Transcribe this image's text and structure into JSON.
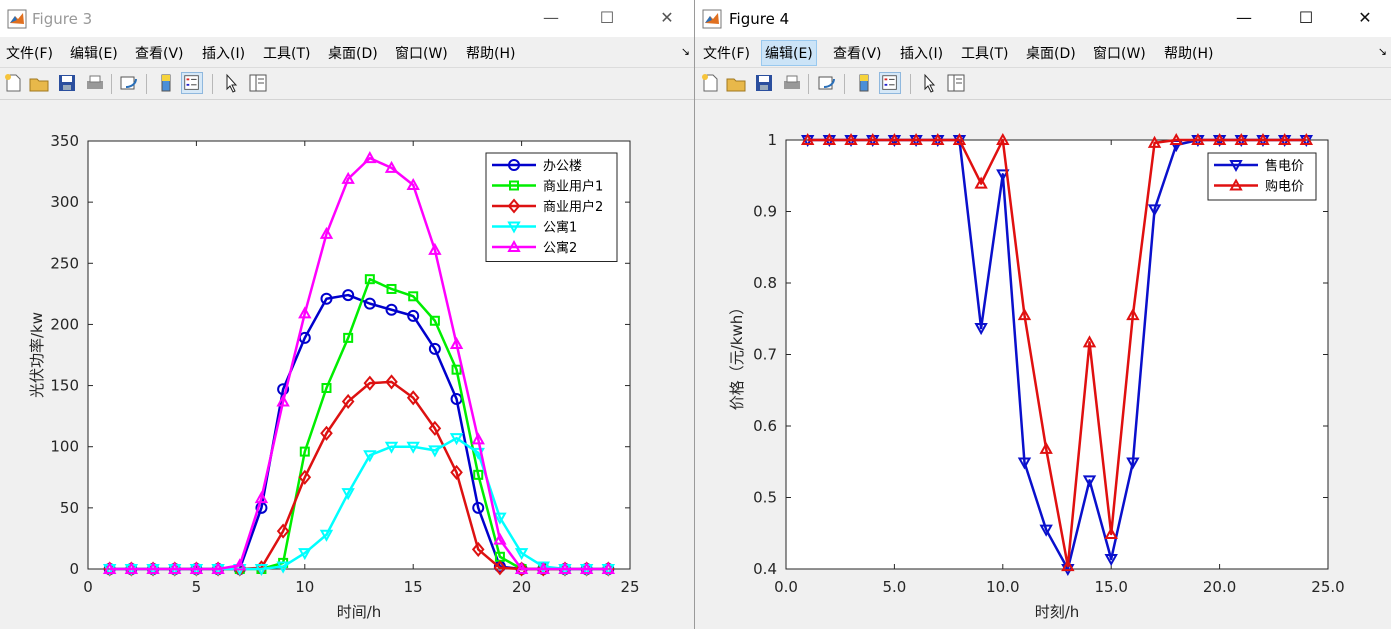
{
  "left_window": {
    "title": "Figure 3",
    "menu": [
      "文件(F)",
      "编辑(E)",
      "查看(V)",
      "插入(I)",
      "工具(T)",
      "桌面(D)",
      "窗口(W)",
      "帮助(H)"
    ],
    "toolbar_icons": [
      "new-figure-icon",
      "open-file-icon",
      "save-icon",
      "print-icon",
      "link-plot-icon",
      "colorbar-icon",
      "legend-icon",
      "edit-plot-pointer-icon",
      "property-inspector-icon"
    ]
  },
  "right_window": {
    "title": "Figure 4",
    "menu": [
      "文件(F)",
      "编辑(E)",
      "查看(V)",
      "插入(I)",
      "工具(T)",
      "桌面(D)",
      "窗口(W)",
      "帮助(H)"
    ],
    "selected_menu_index": 1
  },
  "colors": {
    "blue": "#0000cc",
    "green": "#00ee00",
    "red": "#dd1111",
    "cyan": "#00ffff",
    "magenta": "#ff00ff",
    "blue2": "#0a10cc",
    "red2": "#e01010"
  },
  "chart_data": [
    {
      "type": "line",
      "xlabel": "时间/h",
      "ylabel": "光伏功率/kw",
      "xlim": [
        0,
        25
      ],
      "ylim": [
        0,
        350
      ],
      "xticks": [
        0,
        5,
        10,
        15,
        20,
        25
      ],
      "yticks": [
        0,
        50,
        100,
        150,
        200,
        250,
        300,
        350
      ],
      "legend_position": "top-right",
      "x": [
        1,
        2,
        3,
        4,
        5,
        6,
        7,
        8,
        9,
        10,
        11,
        12,
        13,
        14,
        15,
        16,
        17,
        18,
        19,
        20,
        21,
        22,
        23,
        24
      ],
      "series": [
        {
          "name": "办公楼",
          "marker": "circle",
          "color": "#0000cc",
          "values": [
            0,
            0,
            0,
            0,
            0,
            0,
            0,
            50,
            147,
            189,
            221,
            224,
            217,
            212,
            207,
            180,
            139,
            50,
            2,
            0,
            0,
            0,
            0,
            0
          ]
        },
        {
          "name": "商业用户1",
          "marker": "square",
          "color": "#00ee00",
          "values": [
            0,
            0,
            0,
            0,
            0,
            0,
            0,
            0,
            5,
            96,
            148,
            189,
            237,
            229,
            223,
            203,
            163,
            77,
            10,
            0,
            0,
            0,
            0,
            0
          ]
        },
        {
          "name": "商业用户2",
          "marker": "diamond",
          "color": "#dd1111",
          "values": [
            0,
            0,
            0,
            0,
            0,
            0,
            0,
            1,
            31,
            75,
            111,
            137,
            152,
            153,
            140,
            115,
            79,
            16,
            1,
            0,
            0,
            0,
            0,
            0
          ]
        },
        {
          "name": "公寓1",
          "marker": "triangle-down",
          "color": "#00ffff",
          "values": [
            0,
            0,
            0,
            0,
            0,
            0,
            0,
            0,
            2,
            13,
            28,
            62,
            93,
            100,
            100,
            97,
            107,
            95,
            42,
            13,
            2,
            0,
            0,
            0
          ]
        },
        {
          "name": "公寓2",
          "marker": "triangle-up",
          "color": "#ff00ff",
          "values": [
            0,
            0,
            0,
            0,
            0,
            0,
            3,
            58,
            137,
            209,
            274,
            319,
            336,
            328,
            314,
            261,
            184,
            106,
            24,
            0,
            0,
            0,
            0,
            0
          ]
        }
      ]
    },
    {
      "type": "line",
      "xlabel": "时刻/h",
      "ylabel": "价格（元/kwh）",
      "xlim": [
        0,
        25
      ],
      "ylim": [
        0.4,
        1
      ],
      "xticks": [
        0,
        5,
        10,
        15,
        20,
        25
      ],
      "yticks": [
        0.4,
        0.5,
        0.6,
        0.7,
        0.8,
        0.9,
        1
      ],
      "legend_position": "top-right",
      "x": [
        1,
        2,
        3,
        4,
        5,
        6,
        7,
        8,
        9,
        10,
        11,
        12,
        13,
        14,
        15,
        16,
        17,
        18,
        19,
        20,
        21,
        22,
        23,
        24
      ],
      "series": [
        {
          "name": "售电价",
          "marker": "triangle-down",
          "color": "#0a10cc",
          "values": [
            1,
            1,
            1,
            1,
            1,
            1,
            1,
            1,
            0.737,
            0.952,
            0.549,
            0.455,
            0.4,
            0.524,
            0.414,
            0.549,
            0.903,
            0.993,
            1,
            1,
            1,
            1,
            1,
            1
          ]
        },
        {
          "name": "购电价",
          "marker": "triangle-up",
          "color": "#e01010",
          "values": [
            1,
            1,
            1,
            1,
            1,
            1,
            1,
            1,
            0.939,
            1,
            0.755,
            0.568,
            0.404,
            0.717,
            0.449,
            0.755,
            0.996,
            1,
            1,
            1,
            1,
            1,
            1,
            1
          ]
        }
      ]
    }
  ]
}
